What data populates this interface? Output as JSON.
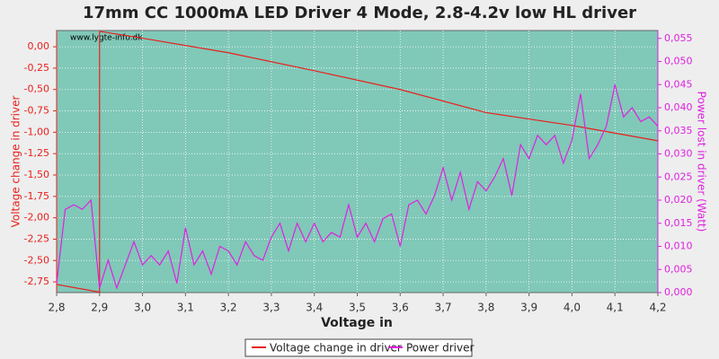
{
  "chart_data": {
    "type": "line",
    "title": "17mm CC 1000mA LED Driver 4 Mode, 2.8-4.2v low HL driver",
    "watermark": "www.lygte-info.dk",
    "x_label": "Voltage in",
    "y_label": "Voltage change in driver",
    "y2_label": "Power lost in driver (Watt)",
    "xlim": [
      2.8,
      4.2
    ],
    "ylim": [
      -2.875,
      0.19
    ],
    "y2lim": [
      0,
      0.0567
    ],
    "grid": true,
    "legend": "bottom",
    "xticks": [
      {
        "value": 2.8,
        "label": "2,8"
      },
      {
        "value": 2.9,
        "label": "2,9"
      },
      {
        "value": 3.0,
        "label": "3,0"
      },
      {
        "value": 3.1,
        "label": "3,1"
      },
      {
        "value": 3.2,
        "label": "3,2"
      },
      {
        "value": 3.3,
        "label": "3,3"
      },
      {
        "value": 3.4,
        "label": "3,4"
      },
      {
        "value": 3.5,
        "label": "3,5"
      },
      {
        "value": 3.6,
        "label": "3,6"
      },
      {
        "value": 3.7,
        "label": "3,7"
      },
      {
        "value": 3.8,
        "label": "3,8"
      },
      {
        "value": 3.9,
        "label": "3,9"
      },
      {
        "value": 4.0,
        "label": "4,0"
      },
      {
        "value": 4.1,
        "label": "4,1"
      },
      {
        "value": 4.2,
        "label": "4,2"
      }
    ],
    "yticks": [
      {
        "value": 0,
        "label": "0,00"
      },
      {
        "value": -0.25,
        "label": "-0,25"
      },
      {
        "value": -0.5,
        "label": "-0,50"
      },
      {
        "value": -0.75,
        "label": "-0,75"
      },
      {
        "value": -1.0,
        "label": "-1,00"
      },
      {
        "value": -1.25,
        "label": "-1,25"
      },
      {
        "value": -1.5,
        "label": "-1,50"
      },
      {
        "value": -1.75,
        "label": "-1,75"
      },
      {
        "value": -2.0,
        "label": "-2,00"
      },
      {
        "value": -2.25,
        "label": "-2,25"
      },
      {
        "value": -2.5,
        "label": "-2,50"
      },
      {
        "value": -2.75,
        "label": "-2,75"
      }
    ],
    "y2ticks": [
      {
        "value": 0,
        "label": "0,000"
      },
      {
        "value": 0.005,
        "label": "0,005"
      },
      {
        "value": 0.01,
        "label": "0,010"
      },
      {
        "value": 0.015,
        "label": "0,015"
      },
      {
        "value": 0.02,
        "label": "0,020"
      },
      {
        "value": 0.025,
        "label": "0,025"
      },
      {
        "value": 0.03,
        "label": "0,030"
      },
      {
        "value": 0.035,
        "label": "0,035"
      },
      {
        "value": 0.04,
        "label": "0,040"
      },
      {
        "value": 0.045,
        "label": "0,045"
      },
      {
        "value": 0.05,
        "label": "0,050"
      },
      {
        "value": 0.055,
        "label": "0,055"
      }
    ],
    "series": [
      {
        "name": "Voltage change in driver",
        "color": "#e8201c",
        "axis": "y",
        "x": [
          2.8,
          2.9,
          2.9,
          3.0,
          3.2,
          3.4,
          3.6,
          3.8,
          4.0,
          4.2
        ],
        "values": [
          -2.78,
          -2.87,
          0.18,
          0.1,
          -0.07,
          -0.28,
          -0.5,
          -0.77,
          -0.92,
          -1.1
        ]
      },
      {
        "name": "Power driver",
        "color": "#e020e0",
        "axis": "y2",
        "x": [
          2.8,
          2.82,
          2.84,
          2.86,
          2.88,
          2.9,
          2.92,
          2.94,
          2.96,
          2.98,
          3.0,
          3.02,
          3.04,
          3.06,
          3.08,
          3.1,
          3.12,
          3.14,
          3.16,
          3.18,
          3.2,
          3.22,
          3.24,
          3.26,
          3.28,
          3.3,
          3.32,
          3.34,
          3.36,
          3.38,
          3.4,
          3.42,
          3.44,
          3.46,
          3.48,
          3.5,
          3.52,
          3.54,
          3.56,
          3.58,
          3.6,
          3.62,
          3.64,
          3.66,
          3.68,
          3.7,
          3.72,
          3.74,
          3.76,
          3.78,
          3.8,
          3.82,
          3.84,
          3.86,
          3.88,
          3.9,
          3.92,
          3.94,
          3.96,
          3.98,
          4.0,
          4.02,
          4.04,
          4.06,
          4.08,
          4.1,
          4.12,
          4.14,
          4.16,
          4.18,
          4.2
        ],
        "values": [
          0.002,
          0.018,
          0.019,
          0.018,
          0.02,
          0.001,
          0.007,
          0.001,
          0.006,
          0.011,
          0.006,
          0.008,
          0.006,
          0.009,
          0.002,
          0.014,
          0.006,
          0.009,
          0.004,
          0.01,
          0.009,
          0.006,
          0.011,
          0.008,
          0.007,
          0.012,
          0.015,
          0.009,
          0.015,
          0.011,
          0.015,
          0.011,
          0.013,
          0.012,
          0.019,
          0.012,
          0.015,
          0.011,
          0.016,
          0.017,
          0.01,
          0.019,
          0.02,
          0.017,
          0.021,
          0.027,
          0.02,
          0.026,
          0.018,
          0.024,
          0.022,
          0.025,
          0.029,
          0.021,
          0.032,
          0.029,
          0.034,
          0.032,
          0.034,
          0.028,
          0.033,
          0.043,
          0.029,
          0.032,
          0.036,
          0.045,
          0.038,
          0.04,
          0.037,
          0.038,
          0.036
        ]
      }
    ]
  }
}
